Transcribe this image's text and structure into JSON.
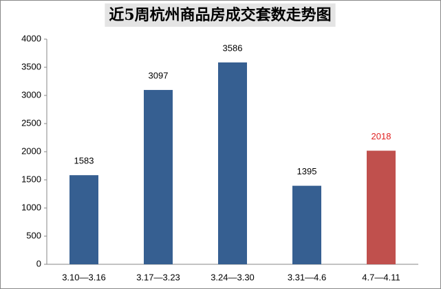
{
  "chart_data": {
    "type": "bar",
    "title": "近5周杭州商品房成交套数走势图",
    "categories": [
      "3.10—3.16",
      "3.17—3.23",
      "3.24—3.30",
      "3.31—4.6",
      "4.7—4.11"
    ],
    "values": [
      1583,
      3097,
      3586,
      1395,
      2018
    ],
    "colors": [
      "#365f91",
      "#365f91",
      "#365f91",
      "#365f91",
      "#c0504d"
    ],
    "value_label_colors": [
      "#000000",
      "#000000",
      "#000000",
      "#000000",
      "#e02020"
    ],
    "ylim": [
      0,
      4000
    ],
    "yticks": [
      0,
      500,
      1000,
      1500,
      2000,
      2500,
      3000,
      3500,
      4000
    ],
    "grid": false
  }
}
